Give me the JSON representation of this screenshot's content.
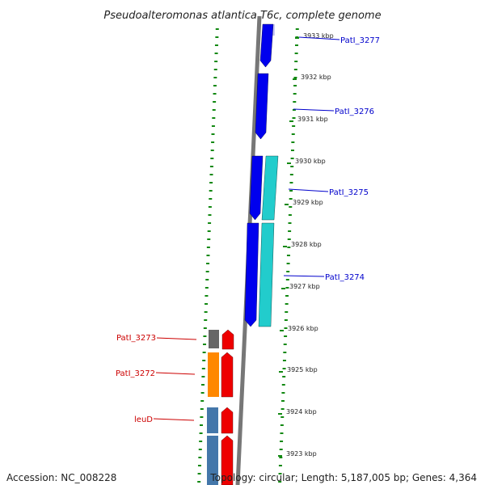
{
  "title": "Pseudoalteromonas atlantica T6c, complete genome",
  "accession_text": "Accession: NC_008228",
  "topology_text": "Topology: circular; Length: 5,187,005 bp; Genes: 4,364",
  "ticks": [
    "3933 kbp",
    "3932 kbp",
    "3931 kbp",
    "3930 kbp",
    "3929 kbp",
    "3928 kbp",
    "3927 kbp",
    "3926 kbp",
    "3925 kbp",
    "3924 kbp",
    "3923 kbp"
  ],
  "genes_right": [
    {
      "label": "PatI_3277",
      "color": "#0000cc"
    },
    {
      "label": "PatI_3276",
      "color": "#0000cc"
    },
    {
      "label": "PatI_3275",
      "color": "#0000cc"
    },
    {
      "label": "PatI_3274",
      "color": "#0000cc"
    }
  ],
  "genes_left": [
    {
      "label": "PatI_3273",
      "color": "#cc0000"
    },
    {
      "label": "PatI_3272",
      "color": "#cc0000"
    },
    {
      "label": "leuD",
      "color": "#cc0000"
    }
  ],
  "colors": {
    "gene_blue": "#0000ee",
    "gene_cyan": "#22cccc",
    "gene_red": "#ee0000",
    "gene_gray": "#666666",
    "gene_orange": "#ff8800",
    "gene_steelblue": "#4477aa",
    "backbone": "#777777",
    "gc_dash": "#118811",
    "label_blue": "#0000cc",
    "label_red": "#cc0000"
  }
}
